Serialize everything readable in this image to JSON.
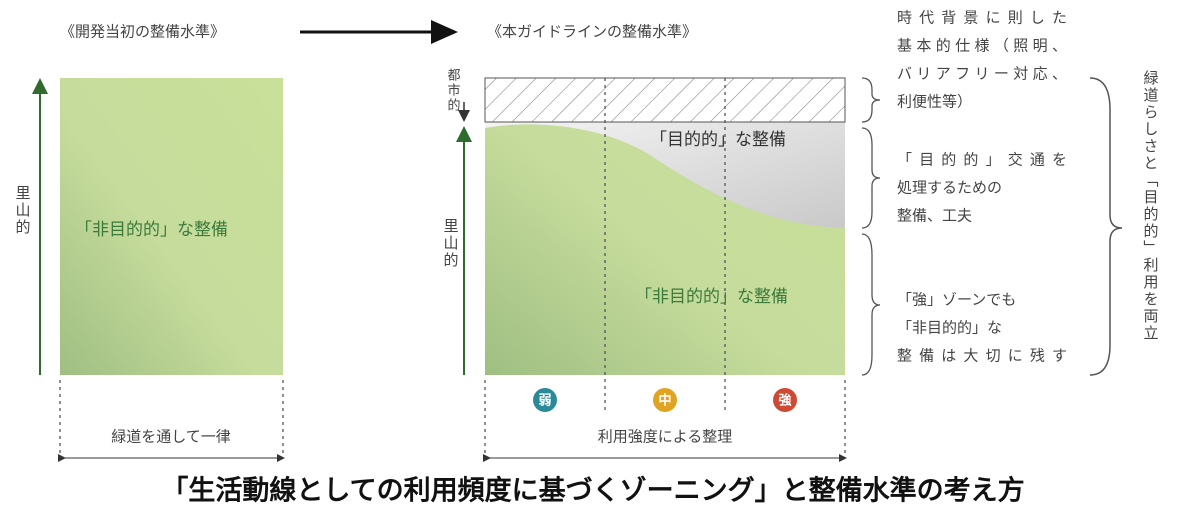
{
  "left": {
    "title": "《開発当初の整備水準》",
    "axis": "里山的",
    "area_label": "「非目的的」な整備",
    "bottom": "緑道を通して一律"
  },
  "right": {
    "title": "《本ガイドラインの整備水準》",
    "axis_top": "都市的",
    "axis_bottom": "里山的",
    "upper_label": "「目的的」な整備",
    "lower_label": "「非目的的」な整備",
    "zones": [
      "弱",
      "中",
      "強"
    ],
    "bottom": "利用強度による整理"
  },
  "notes": [
    [
      "時代背景に則した",
      "基本的仕様（照明、",
      "バリアフリー対応、",
      "利便性等）"
    ],
    [
      "「目的的」交通を",
      "処理するための",
      "整備、工夫"
    ],
    [
      "「強」ゾーンでも",
      "「非目的的」な",
      "整備は大切に残す"
    ]
  ],
  "summary": "緑道らしさと「目的的」利用を両立",
  "caption": "「生活動線としての利用頻度に基づくゾーニング」と整備水準の考え方"
}
